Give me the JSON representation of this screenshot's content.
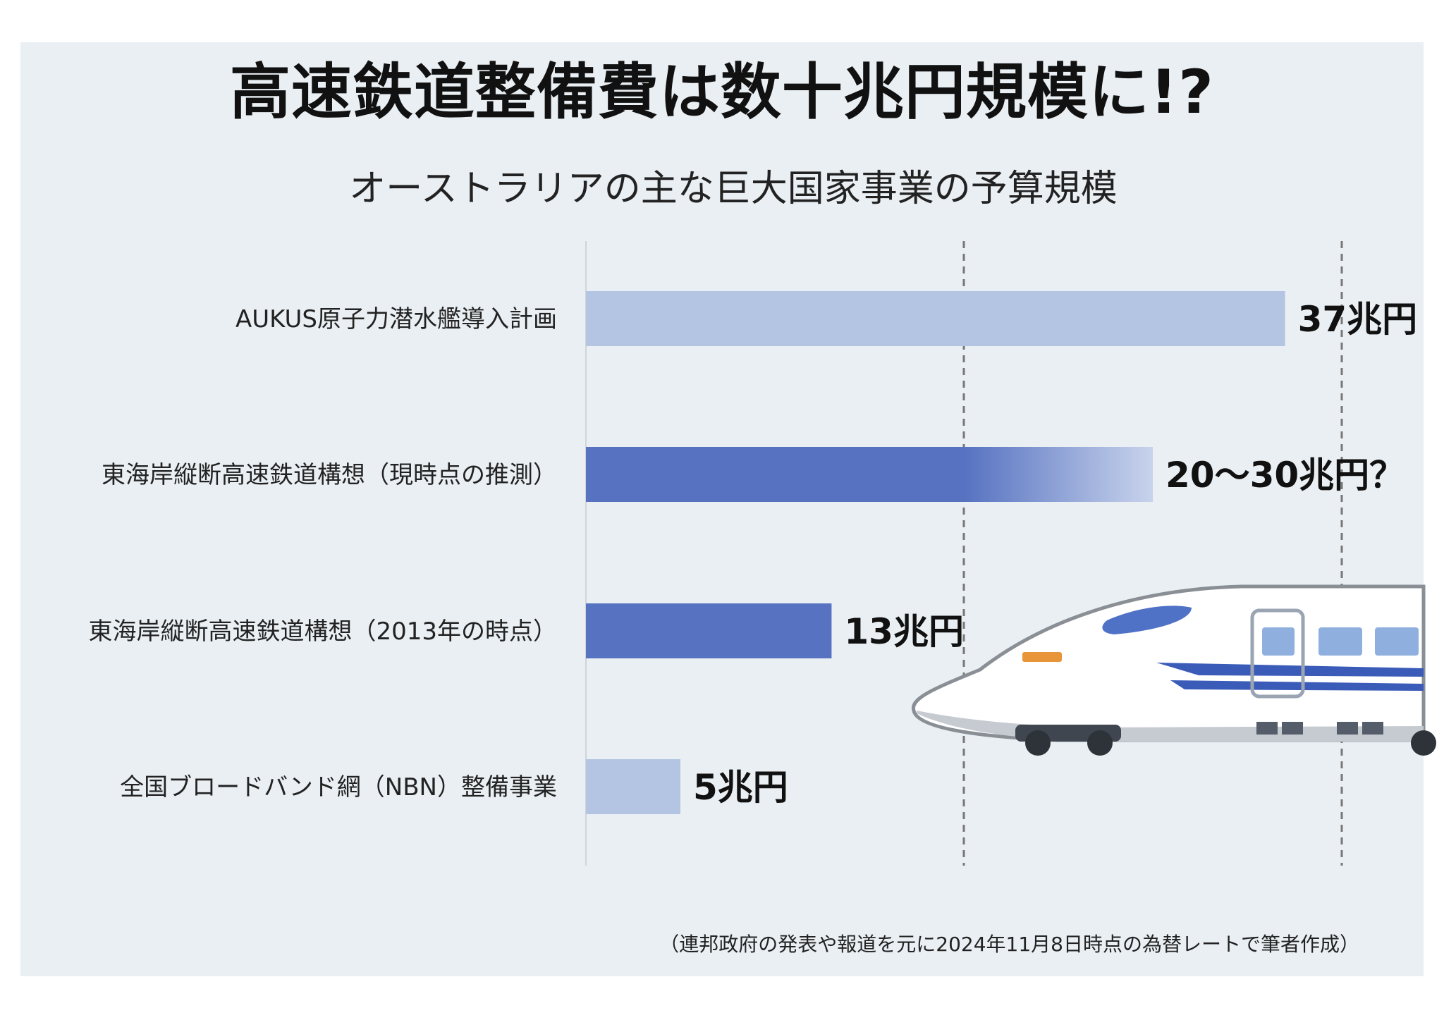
{
  "title": "高速鉄道整備費は数十兆円規模に!?",
  "subtitle": "オーストラリアの主な巨大国家事業の予算規模",
  "footnote": "（連邦政府の発表や報道を元に2024年11月8日時点の為替レートで筆者作成）",
  "colors": {
    "background": "#eaeff3",
    "bar_light": "#b4c4e3",
    "bar_dark": "#5672c1",
    "gridline": "#777777"
  },
  "illustration": "shinkansen-train-icon",
  "chart_data": {
    "type": "bar",
    "orientation": "horizontal",
    "unit": "兆円",
    "xlim": [
      0,
      40
    ],
    "gridlines_at": [
      20,
      40
    ],
    "grid_style": "dashed",
    "categories": [
      "AUKUS原子力潜水艦導入計画",
      "東海岸縦断高速鉄道構想（現時点の推測）",
      "東海岸縦断高速鉄道構想（2013年の時点）",
      "全国ブロードバンド網（NBN）整備事業"
    ],
    "values": [
      37,
      30,
      13,
      5
    ],
    "range_low": [
      null,
      20,
      null,
      null
    ],
    "value_labels": [
      "37兆円",
      "20〜30兆円？",
      "13兆円",
      "5兆円"
    ],
    "bar_styles": [
      "light",
      "dark-gradient",
      "dark",
      "light"
    ]
  }
}
